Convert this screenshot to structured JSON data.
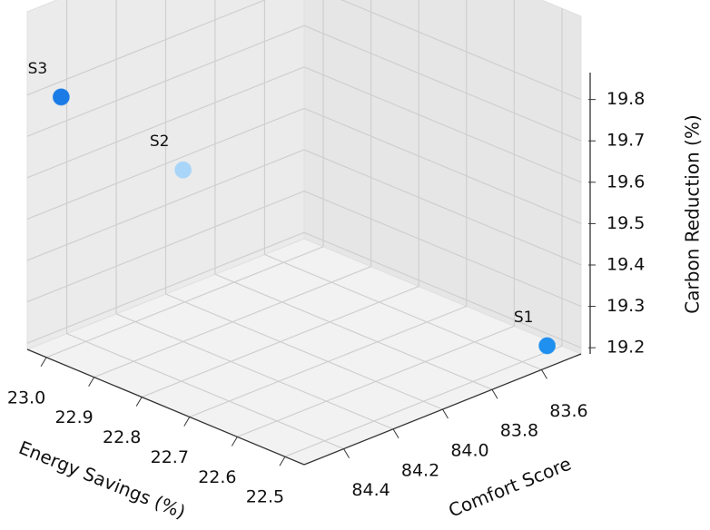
{
  "chart_data": {
    "type": "scatter3d",
    "x_label": "Energy Savings (%)",
    "y_label": "Comfort Score",
    "z_label": "Carbon Reduction (%)",
    "labels": [
      "S1",
      "S2",
      "S3"
    ],
    "x": [
      22.5,
      22.9,
      23.0
    ],
    "y": [
      83.5,
      84.2,
      84.5
    ],
    "z": [
      19.2,
      19.6,
      19.8
    ],
    "colors": [
      "#1f8ff0",
      "#a9d5f8",
      "#1a7be6"
    ],
    "xlim": [
      22.46,
      23.04
    ],
    "xticks": [
      22.5,
      22.6,
      22.7,
      22.8,
      22.9,
      {
        "value": 23,
        "label": "23.0"
      }
    ],
    "ylim": [
      83.44,
      84.56
    ],
    "yticks": [
      83.6,
      83.8,
      {
        "value": 84,
        "label": "84.0"
      },
      84.2,
      84.4
    ],
    "zlim": [
      19.185,
      19.865
    ],
    "zticks": [
      19.2,
      19.3,
      19.4,
      19.5,
      19.6,
      19.7,
      19.8
    ],
    "grid": true
  }
}
